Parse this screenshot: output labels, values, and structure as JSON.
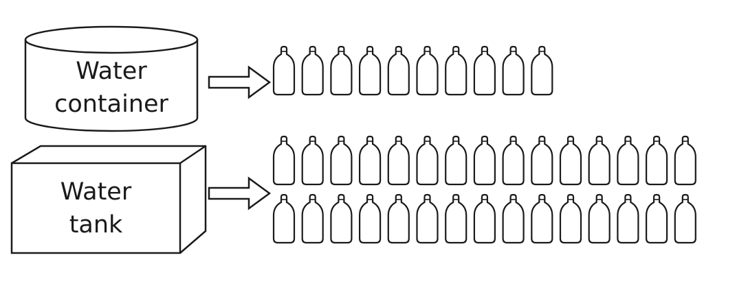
{
  "container": {
    "label_line1": "Water",
    "label_line2": "container",
    "bottle_rows": [
      10
    ]
  },
  "tank": {
    "label_line1": "Water",
    "label_line2": "tank",
    "bottle_rows": [
      15,
      15
    ]
  },
  "colors": {
    "stroke": "#1a1a1a",
    "background": "#ffffff"
  }
}
